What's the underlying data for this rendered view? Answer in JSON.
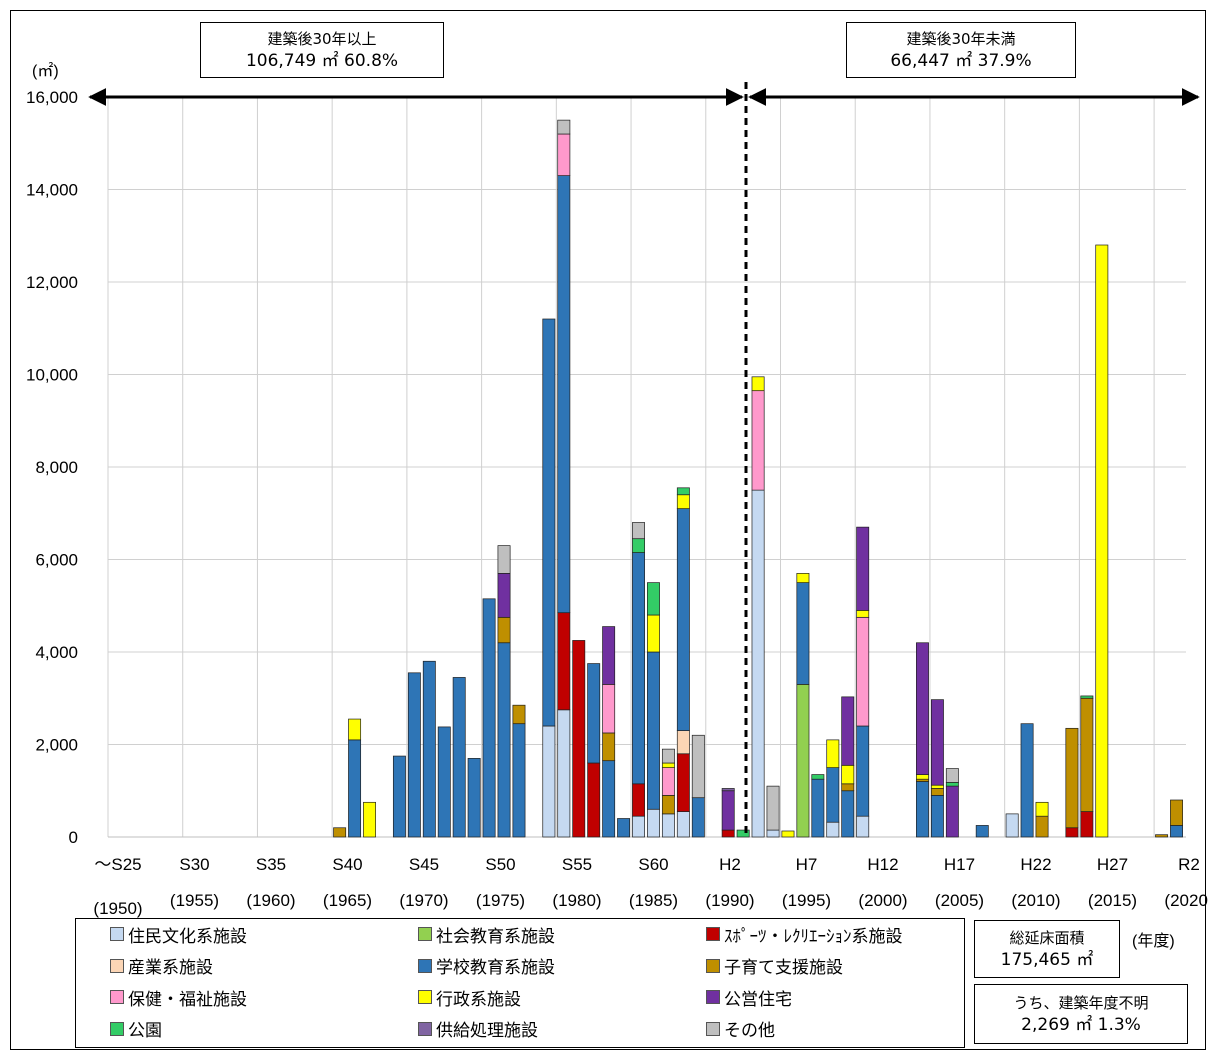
{
  "chart_data": {
    "type": "bar",
    "stacked": true,
    "unit": "(㎡)",
    "y_ticks": [
      "0",
      "2,000",
      "4,000",
      "6,000",
      "8,000",
      "10,000",
      "12,000",
      "14,000",
      "16,000"
    ],
    "ylim": [
      0,
      16000
    ],
    "grid": "vertical",
    "x_labels": [
      {
        "era": "～S25",
        "year": "(1950)"
      },
      {
        "era": "S30",
        "year": "(1955)"
      },
      {
        "era": "S35",
        "year": "(1960)"
      },
      {
        "era": "S40",
        "year": "(1965)"
      },
      {
        "era": "S45",
        "year": "(1970)"
      },
      {
        "era": "S50",
        "year": "(1975)"
      },
      {
        "era": "S55",
        "year": "(1980)"
      },
      {
        "era": "S60",
        "year": "(1985)"
      },
      {
        "era": "H2",
        "year": "(1990)"
      },
      {
        "era": "H7",
        "year": "(1995)"
      },
      {
        "era": "H12",
        "year": "(2000)"
      },
      {
        "era": "H17",
        "year": "(2005)"
      },
      {
        "era": "H22",
        "year": "(2010)"
      },
      {
        "era": "H27",
        "year": "(2015)"
      },
      {
        "era": "R2",
        "year": "(2020)"
      }
    ],
    "x_unit": "(年度)",
    "categories": [
      "1950",
      "1951",
      "1952",
      "1953",
      "1954",
      "1955",
      "1956",
      "1957",
      "1958",
      "1959",
      "1960",
      "1961",
      "1962",
      "1963",
      "1964",
      "1965",
      "1966",
      "1967",
      "1968",
      "1969",
      "1970",
      "1971",
      "1972",
      "1973",
      "1974",
      "1975",
      "1976",
      "1977",
      "1978",
      "1979",
      "1980",
      "1981",
      "1982",
      "1983",
      "1984",
      "1985",
      "1986",
      "1987",
      "1988",
      "1989",
      "1990",
      "1991",
      "1992",
      "1993",
      "1994",
      "1995",
      "1996",
      "1997",
      "1998",
      "1999",
      "2000",
      "2001",
      "2002",
      "2003",
      "2004",
      "2005",
      "2006",
      "2007",
      "2008",
      "2009",
      "2010",
      "2011",
      "2012",
      "2013",
      "2014",
      "2015",
      "2016",
      "2017",
      "2018",
      "2019",
      "2020",
      "2021"
    ],
    "series": [
      {
        "name": "住民文化系施設",
        "color": "#c5d9f1",
        "values": [
          0,
          0,
          0,
          0,
          0,
          0,
          0,
          0,
          0,
          0,
          0,
          0,
          0,
          0,
          0,
          0,
          0,
          0,
          0,
          0,
          0,
          0,
          0,
          0,
          0,
          0,
          0,
          0,
          0,
          2400,
          2750,
          0,
          0,
          0,
          0,
          450,
          600,
          500,
          550,
          0,
          0,
          0,
          0,
          7500,
          150,
          0,
          0,
          0,
          320,
          0,
          450,
          0,
          0,
          0,
          0,
          0,
          0,
          0,
          0,
          0,
          500,
          0,
          0,
          0,
          0,
          0,
          0,
          0,
          0,
          0,
          0,
          0
        ]
      },
      {
        "name": "社会教育系施設",
        "color": "#92d050",
        "values": [
          0,
          0,
          0,
          0,
          0,
          0,
          0,
          0,
          0,
          0,
          0,
          0,
          0,
          0,
          0,
          0,
          0,
          0,
          0,
          0,
          0,
          0,
          0,
          0,
          0,
          0,
          0,
          0,
          0,
          0,
          0,
          0,
          0,
          0,
          0,
          0,
          0,
          0,
          0,
          0,
          0,
          0,
          0,
          0,
          0,
          0,
          3300,
          0,
          0,
          0,
          0,
          0,
          0,
          0,
          0,
          0,
          0,
          0,
          0,
          0,
          0,
          0,
          0,
          0,
          0,
          0,
          0,
          0,
          0,
          0,
          0,
          0
        ]
      },
      {
        "name": "ｽﾎﾟｰﾂ・ﾚｸﾘｴｰｼｮﾝ系施設",
        "color": "#c00000",
        "values": [
          0,
          0,
          0,
          0,
          0,
          0,
          0,
          0,
          0,
          0,
          0,
          0,
          0,
          0,
          0,
          0,
          0,
          0,
          0,
          0,
          0,
          0,
          0,
          0,
          0,
          0,
          0,
          0,
          0,
          0,
          2100,
          4250,
          1600,
          0,
          0,
          700,
          0,
          0,
          1250,
          0,
          0,
          150,
          0,
          0,
          0,
          0,
          0,
          0,
          0,
          0,
          0,
          0,
          0,
          0,
          0,
          0,
          0,
          0,
          0,
          0,
          0,
          0,
          0,
          0,
          200,
          550,
          0,
          0,
          0,
          0,
          0,
          0
        ]
      },
      {
        "name": "産業系施設",
        "color": "#fbd5b5",
        "values": [
          0,
          0,
          0,
          0,
          0,
          0,
          0,
          0,
          0,
          0,
          0,
          0,
          0,
          0,
          0,
          0,
          0,
          0,
          0,
          0,
          0,
          0,
          0,
          0,
          0,
          0,
          0,
          0,
          0,
          0,
          0,
          0,
          0,
          0,
          0,
          0,
          0,
          0,
          500,
          0,
          0,
          0,
          0,
          0,
          0,
          0,
          0,
          0,
          0,
          0,
          0,
          0,
          0,
          0,
          0,
          0,
          0,
          0,
          0,
          0,
          0,
          0,
          0,
          0,
          0,
          0,
          0,
          0,
          0,
          0,
          0,
          0
        ]
      },
      {
        "name": "学校教育系施設",
        "color": "#2e75b6",
        "values": [
          0,
          0,
          0,
          0,
          0,
          0,
          0,
          0,
          0,
          0,
          0,
          0,
          0,
          0,
          0,
          0,
          2100,
          0,
          0,
          1750,
          3550,
          3800,
          2380,
          3450,
          1700,
          5150,
          4200,
          2450,
          0,
          8800,
          9450,
          0,
          2150,
          1650,
          400,
          5000,
          3400,
          0,
          4800,
          850,
          0,
          0,
          0,
          0,
          0,
          0,
          2200,
          1250,
          1180,
          1000,
          1950,
          0,
          0,
          0,
          1200,
          900,
          0,
          0,
          250,
          0,
          0,
          2450,
          0,
          0,
          0,
          0,
          0,
          0,
          0,
          0,
          0,
          250
        ]
      },
      {
        "name": "子育て支援施設",
        "color": "#bf8f00",
        "values": [
          0,
          0,
          0,
          0,
          0,
          0,
          0,
          0,
          0,
          0,
          0,
          0,
          0,
          0,
          0,
          200,
          0,
          0,
          0,
          0,
          0,
          0,
          0,
          0,
          0,
          0,
          550,
          400,
          0,
          0,
          0,
          0,
          0,
          600,
          0,
          0,
          0,
          400,
          0,
          0,
          0,
          0,
          0,
          0,
          0,
          0,
          0,
          0,
          0,
          150,
          0,
          0,
          0,
          0,
          50,
          150,
          0,
          0,
          0,
          0,
          0,
          0,
          450,
          0,
          2150,
          2450,
          0,
          0,
          0,
          0,
          50,
          550
        ]
      },
      {
        "name": "保健・福祉施設",
        "color": "#ff99cc",
        "values": [
          0,
          0,
          0,
          0,
          0,
          0,
          0,
          0,
          0,
          0,
          0,
          0,
          0,
          0,
          0,
          0,
          0,
          0,
          0,
          0,
          0,
          0,
          0,
          0,
          0,
          0,
          0,
          0,
          0,
          0,
          900,
          0,
          0,
          1050,
          0,
          0,
          0,
          600,
          0,
          0,
          0,
          0,
          0,
          2150,
          0,
          0,
          0,
          0,
          0,
          0,
          2350,
          0,
          0,
          0,
          0,
          0,
          0,
          0,
          0,
          0,
          0,
          0,
          0,
          0,
          0,
          0,
          0,
          0,
          0,
          0,
          0,
          0
        ]
      },
      {
        "name": "行政系施設",
        "color": "#ffff00",
        "values": [
          0,
          0,
          0,
          0,
          0,
          0,
          0,
          0,
          0,
          0,
          0,
          0,
          0,
          0,
          0,
          0,
          450,
          750,
          0,
          0,
          0,
          0,
          0,
          0,
          0,
          0,
          0,
          0,
          0,
          0,
          0,
          0,
          0,
          0,
          0,
          0,
          800,
          100,
          300,
          0,
          0,
          0,
          0,
          300,
          0,
          130,
          200,
          0,
          600,
          400,
          150,
          0,
          0,
          0,
          100,
          70,
          0,
          0,
          0,
          0,
          0,
          0,
          300,
          0,
          0,
          0,
          12800,
          0,
          0,
          0,
          0,
          0
        ]
      },
      {
        "name": "公営住宅",
        "color": "#7030a0",
        "values": [
          0,
          0,
          0,
          0,
          0,
          0,
          0,
          0,
          0,
          0,
          0,
          0,
          0,
          0,
          0,
          0,
          0,
          0,
          0,
          0,
          0,
          0,
          0,
          0,
          0,
          0,
          950,
          0,
          0,
          0,
          0,
          0,
          0,
          1250,
          0,
          0,
          0,
          0,
          0,
          0,
          0,
          850,
          0,
          0,
          0,
          0,
          0,
          0,
          0,
          1480,
          1800,
          0,
          0,
          0,
          2850,
          1850,
          1100,
          0,
          0,
          0,
          0,
          0,
          0,
          0,
          0,
          0,
          0,
          0,
          0,
          0,
          0,
          0
        ]
      },
      {
        "name": "公園",
        "color": "#33cc66",
        "values": [
          0,
          0,
          0,
          0,
          0,
          0,
          0,
          0,
          0,
          0,
          0,
          0,
          0,
          0,
          0,
          0,
          0,
          0,
          0,
          0,
          0,
          0,
          0,
          0,
          0,
          0,
          0,
          0,
          0,
          0,
          0,
          0,
          0,
          0,
          0,
          300,
          700,
          0,
          150,
          0,
          0,
          0,
          150,
          0,
          0,
          0,
          0,
          100,
          0,
          0,
          0,
          0,
          0,
          0,
          0,
          0,
          80,
          0,
          0,
          0,
          0,
          0,
          0,
          0,
          0,
          50,
          0,
          0,
          0,
          0,
          0,
          0
        ]
      },
      {
        "name": "供給処理施設",
        "color": "#8064a2",
        "values": [
          0,
          0,
          0,
          0,
          0,
          0,
          0,
          0,
          0,
          0,
          0,
          0,
          0,
          0,
          0,
          0,
          0,
          0,
          0,
          0,
          0,
          0,
          0,
          0,
          0,
          0,
          0,
          0,
          0,
          0,
          0,
          0,
          0,
          0,
          0,
          0,
          0,
          0,
          0,
          0,
          0,
          50,
          0,
          0,
          0,
          0,
          0,
          0,
          0,
          0,
          0,
          0,
          0,
          0,
          0,
          0,
          0,
          0,
          0,
          0,
          0,
          0,
          0,
          0,
          0,
          0,
          0,
          0,
          0,
          0,
          0,
          0
        ]
      },
      {
        "name": "その他",
        "color": "#bfbfbf",
        "values": [
          0,
          0,
          0,
          0,
          0,
          0,
          0,
          0,
          0,
          0,
          0,
          0,
          0,
          0,
          0,
          0,
          0,
          0,
          0,
          0,
          0,
          0,
          0,
          0,
          0,
          0,
          600,
          0,
          0,
          0,
          300,
          0,
          0,
          0,
          0,
          350,
          0,
          300,
          0,
          1350,
          0,
          0,
          0,
          0,
          950,
          0,
          0,
          0,
          0,
          0,
          0,
          0,
          0,
          0,
          0,
          0,
          300,
          0,
          0,
          0,
          0,
          0,
          0,
          0,
          0,
          0,
          0,
          0,
          0,
          0,
          0,
          0
        ]
      }
    ],
    "annotation_left": {
      "line1": "建築後30年以上",
      "line2": "106,749 ㎡  60.8%"
    },
    "annotation_right": {
      "line1": "建築後30年未満",
      "line2": "66,447 ㎡   37.9%"
    }
  },
  "summary_total": {
    "label": "総延床面積",
    "value": "175,465 ㎡"
  },
  "summary_unknown": {
    "label": "うち、建築年度不明",
    "value": "2,269 ㎡     1.3%"
  }
}
